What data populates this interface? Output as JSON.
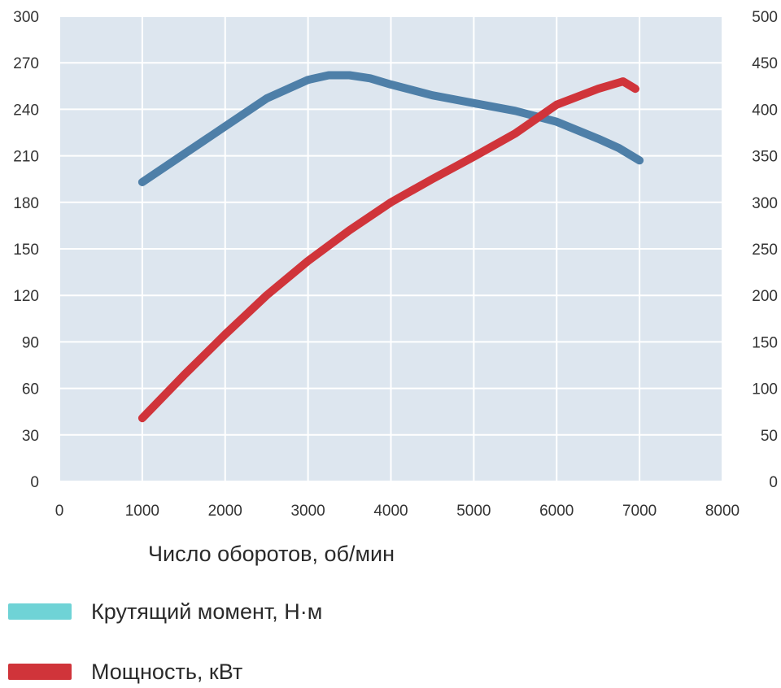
{
  "chart_data": {
    "type": "line",
    "xlabel": "Число оборотов, об/мин",
    "xlim": [
      0,
      8000
    ],
    "x_ticks": [
      0,
      1000,
      2000,
      3000,
      4000,
      5000,
      6000,
      7000,
      8000
    ],
    "ylim_left": [
      0,
      300
    ],
    "y_left_ticks": [
      0,
      30,
      60,
      90,
      120,
      150,
      180,
      210,
      240,
      270,
      300
    ],
    "ylim_right": [
      0,
      500
    ],
    "y_right_ticks": [
      0,
      50,
      100,
      150,
      200,
      250,
      300,
      350,
      400,
      450,
      500
    ],
    "grid": true,
    "legend_position": "bottom",
    "series": [
      {
        "name": "Крутящий момент, Н·м",
        "axis": "left",
        "color": "#4e7fa8",
        "legend_color": "#6fd3d6",
        "x": [
          1000,
          1500,
          2000,
          2500,
          3000,
          3250,
          3500,
          3750,
          4000,
          4500,
          5000,
          5500,
          6000,
          6500,
          6750,
          7000
        ],
        "values": [
          193,
          211,
          229,
          247,
          259,
          262,
          262,
          260,
          256,
          249,
          244,
          239,
          232,
          221,
          215,
          207
        ]
      },
      {
        "name": "Мощность, кВт",
        "axis": "right",
        "color": "#d0343a",
        "legend_color": "#d0343a",
        "x": [
          1000,
          1500,
          2000,
          2500,
          3000,
          3500,
          4000,
          4500,
          5000,
          5500,
          6000,
          6500,
          6800,
          6950
        ],
        "values": [
          68,
          114,
          158,
          200,
          237,
          270,
          300,
          325,
          349,
          374,
          405,
          422,
          430,
          422
        ]
      }
    ]
  }
}
